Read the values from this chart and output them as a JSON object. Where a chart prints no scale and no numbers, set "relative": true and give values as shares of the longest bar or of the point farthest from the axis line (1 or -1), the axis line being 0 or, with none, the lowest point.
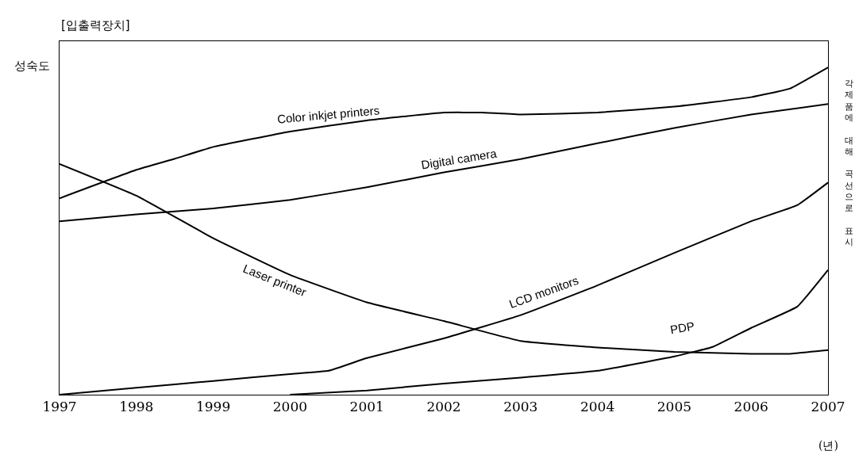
{
  "chart_data": {
    "type": "line",
    "title": "[입출력장치]",
    "ylabel": "성숙도",
    "xlabel": "(년)",
    "annotations": [
      "각제품에 대해 곡선으로 표시"
    ],
    "relative": true,
    "xlim": [
      1997,
      2007
    ],
    "xticks": [
      1997,
      1998,
      1999,
      2000,
      2001,
      2002,
      2003,
      2004,
      2005,
      2006,
      2007
    ],
    "legend": false,
    "marker": "none",
    "line_style": "solid",
    "series": [
      {
        "name": "Color inkjet printers",
        "color": "#000000",
        "x": [
          1997,
          1998,
          1998.5,
          1999,
          2000,
          2001,
          2002,
          2002.5,
          2003,
          2004,
          2005,
          2006,
          2006.5,
          2007
        ],
        "values": [
          0.6,
          0.687,
          0.721,
          0.757,
          0.804,
          0.838,
          0.862,
          0.862,
          0.856,
          0.862,
          0.88,
          0.909,
          0.935,
          1
        ]
      },
      {
        "name": "Digital camera",
        "color": "#000000",
        "x": [
          1997,
          1998,
          1999,
          2000,
          2001,
          2002,
          2003,
          2004,
          2005,
          2006,
          2007
        ],
        "values": [
          0.53,
          0.551,
          0.569,
          0.595,
          0.634,
          0.679,
          0.72,
          0.768,
          0.815,
          0.856,
          0.888
        ]
      },
      {
        "name": "Laser printer",
        "color": "#000000",
        "x": [
          1997,
          1998,
          1999,
          2000,
          2001,
          2002,
          2003,
          2004,
          2005,
          2006,
          2006.5,
          2007
        ],
        "values": [
          0.705,
          0.608,
          0.478,
          0.366,
          0.282,
          0.225,
          0.164,
          0.144,
          0.131,
          0.125,
          0.125,
          0.136
        ]
      },
      {
        "name": "LCD monitors",
        "color": "#000000",
        "x": [
          1997,
          1998,
          1999,
          2000,
          2000.5,
          2001,
          2002,
          2003,
          2004,
          2005,
          2006,
          2006.6,
          2007
        ],
        "values": [
          0,
          0.021,
          0.042,
          0.063,
          0.073,
          0.112,
          0.172,
          0.243,
          0.334,
          0.433,
          0.53,
          0.579,
          0.648
        ]
      },
      {
        "name": "PDP",
        "color": "#000000",
        "x": [
          2000,
          2001,
          2002,
          2003,
          2004,
          2005,
          2005.5,
          2006,
          2006.6,
          2007
        ],
        "values": [
          0,
          0.013,
          0.034,
          0.052,
          0.073,
          0.117,
          0.146,
          0.204,
          0.269,
          0.381
        ]
      }
    ]
  }
}
